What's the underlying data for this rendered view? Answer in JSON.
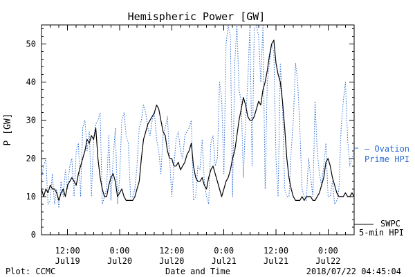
{
  "chart_data": {
    "type": "line",
    "title": "Hemispheric Power [GW]",
    "xlabel": "Date and Time",
    "ylabel": "P [GW]",
    "ylim": [
      0,
      55
    ],
    "xlim": [
      0,
      72
    ],
    "yticks": [
      0,
      10,
      20,
      30,
      40,
      50
    ],
    "xticks": [
      {
        "x": 6,
        "label1": "12:00",
        "label2": "Jul19"
      },
      {
        "x": 18,
        "label1": "0:00",
        "label2": "Jul20"
      },
      {
        "x": 30,
        "label1": "12:00",
        "label2": "Jul20"
      },
      {
        "x": 42,
        "label1": "0:00",
        "label2": "Jul21"
      },
      {
        "x": 54,
        "label1": "12:00",
        "label2": "Jul21"
      },
      {
        "x": 66,
        "label1": "0:00",
        "label2": "Jul22"
      }
    ],
    "series": [
      {
        "name": "SWPC 5-min HPI",
        "legend_lines": [
          "SWPC",
          "5-min HPI"
        ],
        "color": "#000000",
        "style": "solid",
        "x": [
          0,
          0.5,
          1,
          1.5,
          2,
          2.5,
          3,
          3.5,
          4,
          4.5,
          5,
          5.5,
          6,
          6.5,
          7,
          7.5,
          8,
          8.5,
          9,
          9.5,
          10,
          10.5,
          11,
          11.5,
          12,
          12.5,
          13,
          13.5,
          14,
          14.5,
          15,
          15.5,
          16,
          16.5,
          17,
          17.5,
          18,
          18.5,
          19,
          19.5,
          20,
          20.5,
          21,
          21.5,
          22,
          22.5,
          23,
          23.5,
          24,
          24.5,
          25,
          25.5,
          26,
          26.5,
          27,
          27.5,
          28,
          28.5,
          29,
          29.5,
          30,
          30.5,
          31,
          31.5,
          32,
          32.5,
          33,
          33.5,
          34,
          34.5,
          35,
          35.5,
          36,
          36.5,
          37,
          37.5,
          38,
          38.5,
          39,
          39.5,
          40,
          40.5,
          41,
          41.5,
          42,
          42.5,
          43,
          43.5,
          44,
          44.5,
          45,
          45.5,
          46,
          46.5,
          47,
          47.5,
          48,
          48.5,
          49,
          49.5,
          50,
          50.5,
          51,
          51.5,
          52,
          52.5,
          53,
          53.5,
          54,
          54.5,
          55,
          55.5,
          56,
          56.5,
          57,
          57.5,
          58,
          58.5,
          59,
          59.5,
          60,
          60.5,
          61,
          61.5,
          62,
          62.5,
          63,
          63.5,
          64,
          64.5,
          65,
          65.5,
          66,
          66.5,
          67,
          67.5,
          68,
          68.5,
          69,
          69.5,
          70,
          70.5,
          71,
          71.5,
          72
        ],
        "values": [
          12,
          10,
          12,
          11,
          13,
          12,
          12,
          11,
          9,
          11,
          12,
          10,
          13,
          14,
          15,
          14,
          13,
          16,
          18,
          20,
          22,
          25,
          24,
          26,
          25,
          28,
          20,
          15,
          12,
          10,
          10,
          13,
          15,
          16,
          14,
          10,
          11,
          12,
          10,
          9,
          9,
          9,
          9,
          10,
          12,
          14,
          20,
          25,
          27,
          29,
          30,
          31,
          32,
          34,
          33,
          30,
          27,
          26,
          22,
          20,
          20,
          18,
          18,
          19,
          17,
          18,
          19,
          21,
          22,
          24,
          18,
          15,
          14,
          14,
          15,
          13,
          12,
          15,
          17,
          18,
          16,
          14,
          12,
          10,
          12,
          14,
          15,
          17,
          20,
          22,
          26,
          30,
          33,
          36,
          34,
          31,
          30,
          30,
          31,
          33,
          35,
          34,
          38,
          40,
          43,
          47,
          50,
          51,
          45,
          42,
          40,
          35,
          28,
          20,
          15,
          12,
          10,
          9,
          9,
          9,
          10,
          9,
          10,
          10,
          10,
          9,
          9,
          10,
          11,
          13,
          15,
          19,
          20,
          18,
          15,
          13,
          11,
          10,
          10,
          10,
          11,
          10,
          10,
          11,
          10
        ]
      },
      {
        "name": "Ovation Prime HPI",
        "legend_lines": [
          "— Ovation",
          "Prime HPI"
        ],
        "color": "#2a6bd1",
        "style": "dotted",
        "x": [
          0,
          0.5,
          1,
          1.5,
          2,
          2.5,
          3,
          3.5,
          4,
          4.5,
          5,
          5.5,
          6,
          6.5,
          7,
          7.5,
          8,
          8.5,
          9,
          9.5,
          10,
          10.5,
          11,
          11.5,
          12,
          12.5,
          13,
          13.5,
          14,
          14.5,
          15,
          15.5,
          16,
          16.5,
          17,
          17.5,
          18,
          18.5,
          19,
          19.5,
          20,
          20.5,
          21,
          21.5,
          22,
          22.5,
          23,
          23.5,
          24,
          24.5,
          25,
          25.5,
          26,
          26.5,
          27,
          27.5,
          28,
          28.5,
          29,
          29.5,
          30,
          30.5,
          31,
          31.5,
          32,
          32.5,
          33,
          33.5,
          34,
          34.5,
          35,
          35.5,
          36,
          36.5,
          37,
          37.5,
          38,
          38.5,
          39,
          39.5,
          40,
          40.5,
          41,
          41.5,
          42,
          42.5,
          43,
          43.5,
          44,
          44.5,
          45,
          45.5,
          46,
          46.5,
          47,
          47.5,
          48,
          48.5,
          49,
          49.5,
          50,
          50.5,
          51,
          51.5,
          52,
          52.5,
          53,
          53.5,
          54,
          54.5,
          55,
          55.5,
          56,
          56.5,
          57,
          57.5,
          58,
          58.5,
          59,
          59.5,
          60,
          60.5,
          61,
          61.5,
          62,
          62.5,
          63,
          63.5,
          64,
          64.5,
          65,
          65.5,
          66,
          66.5,
          67,
          67.5,
          68,
          68.5,
          69,
          69.5,
          70,
          70.5,
          71,
          71.5,
          72
        ],
        "values": [
          15,
          18,
          20,
          8,
          9,
          16,
          8,
          12,
          7,
          14,
          10,
          17,
          12,
          18,
          20,
          10,
          22,
          24,
          10,
          28,
          30,
          22,
          27,
          10,
          25,
          29,
          30,
          32,
          8,
          10,
          12,
          26,
          9,
          20,
          28,
          8,
          15,
          30,
          32,
          26,
          24,
          10,
          10,
          12,
          18,
          28,
          30,
          34,
          32,
          28,
          26,
          30,
          32,
          25,
          22,
          16,
          26,
          28,
          31,
          20,
          10,
          18,
          25,
          27,
          22,
          20,
          26,
          27,
          28,
          30,
          9,
          10,
          18,
          17,
          25,
          14,
          10,
          8,
          24,
          26,
          18,
          20,
          40,
          36,
          16,
          50,
          55,
          52,
          10,
          45,
          55,
          38,
          35,
          15,
          30,
          40,
          55,
          18,
          54,
          56,
          52,
          40,
          55,
          12,
          40,
          45,
          50,
          48,
          20,
          10,
          45,
          35,
          12,
          10,
          10,
          22,
          30,
          45,
          40,
          28,
          12,
          10,
          9,
          20,
          15,
          10,
          35,
          22,
          16,
          13,
          18,
          24,
          10,
          10,
          14,
          8,
          9,
          12,
          28,
          35,
          40,
          25,
          18,
          20,
          22
        ]
      }
    ],
    "footer_left": "Plot: CCMC",
    "footer_right": "2018/07/22 04:45:04"
  }
}
